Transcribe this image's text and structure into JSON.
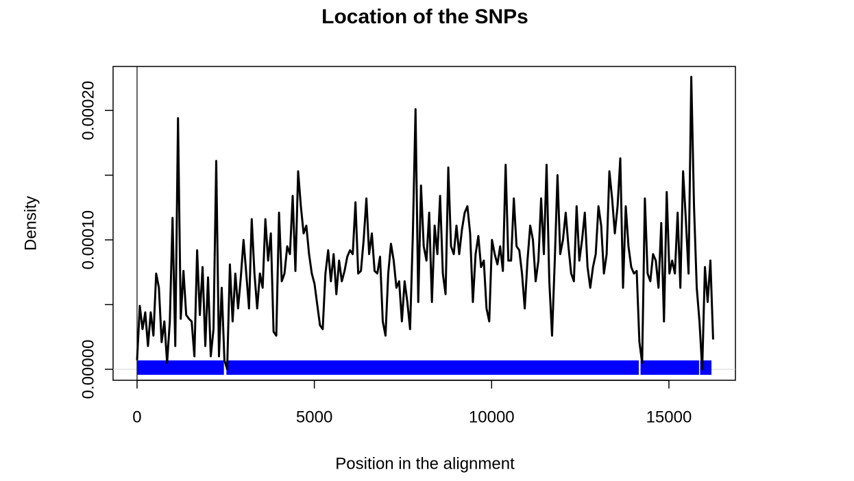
{
  "chart_data": {
    "type": "line",
    "title": "Location of the SNPs",
    "x_label": "Position in the alignment",
    "y_label": "Density",
    "xlim": [
      -676,
      16876
    ],
    "ylim": [
      -8.5e-06,
      0.000234
    ],
    "xticks": [
      0,
      5000,
      10000,
      15000
    ],
    "yticks": [
      {
        "value": 0,
        "label": "0.00000"
      },
      {
        "value": 0.0001,
        "label": "0.00010"
      },
      {
        "value": 0.0002,
        "label": "0.00020"
      }
    ],
    "yminor_ticks": [
      5e-05,
      0.00015
    ],
    "vline": 0,
    "hline": 0,
    "hline_color": "#d3d3d3",
    "rug_color": "#0000ff",
    "rug_segments": [
      [
        0,
        2450
      ],
      [
        2520,
        14150
      ],
      [
        14200,
        15850
      ],
      [
        15880,
        16200
      ]
    ],
    "x": [
      0,
      77,
      154,
      231,
      308,
      385,
      462,
      539,
      616,
      693,
      770,
      847,
      924,
      1001,
      1078,
      1155,
      1232,
      1309,
      1386,
      1463,
      1540,
      1617,
      1694,
      1771,
      1848,
      1925,
      2002,
      2079,
      2156,
      2233,
      2310,
      2387,
      2464,
      2541,
      2618,
      2695,
      2772,
      2849,
      2926,
      3003,
      3080,
      3157,
      3234,
      3311,
      3388,
      3465,
      3542,
      3619,
      3696,
      3773,
      3850,
      3927,
      4004,
      4081,
      4158,
      4235,
      4312,
      4389,
      4466,
      4543,
      4620,
      4697,
      4774,
      4851,
      4928,
      5005,
      5082,
      5159,
      5236,
      5313,
      5390,
      5467,
      5544,
      5621,
      5698,
      5775,
      5852,
      5929,
      6006,
      6083,
      6160,
      6237,
      6314,
      6391,
      6468,
      6545,
      6622,
      6699,
      6776,
      6853,
      6930,
      7007,
      7084,
      7161,
      7238,
      7315,
      7392,
      7469,
      7546,
      7623,
      7700,
      7777,
      7854,
      7931,
      8008,
      8085,
      8162,
      8239,
      8316,
      8393,
      8470,
      8547,
      8624,
      8701,
      8778,
      8855,
      8932,
      9009,
      9086,
      9163,
      9240,
      9317,
      9394,
      9471,
      9548,
      9625,
      9702,
      9779,
      9856,
      9933,
      10010,
      10087,
      10164,
      10241,
      10318,
      10395,
      10472,
      10549,
      10626,
      10703,
      10780,
      10857,
      10934,
      11011,
      11088,
      11165,
      11242,
      11319,
      11396,
      11473,
      11550,
      11627,
      11704,
      11781,
      11858,
      11935,
      12012,
      12089,
      12166,
      12243,
      12320,
      12397,
      12474,
      12551,
      12628,
      12705,
      12782,
      12859,
      12936,
      13013,
      13090,
      13167,
      13244,
      13321,
      13398,
      13475,
      13552,
      13629,
      13706,
      13783,
      13860,
      13937,
      14014,
      14091,
      14168,
      14245,
      14322,
      14399,
      14476,
      14553,
      14630,
      14707,
      14784,
      14861,
      14938,
      15015,
      15092,
      15169,
      15246,
      15323,
      15400,
      15477,
      15554,
      15631,
      15708,
      15785,
      15862,
      15939,
      16016,
      16093,
      16170,
      16247
    ],
    "series": [
      {
        "color": "#000000",
        "values": [
          7e-06,
          4.9e-05,
          3.1e-05,
          4.4e-05,
          1.8e-05,
          4.4e-05,
          2.6e-05,
          7.4e-05,
          6.3e-05,
          2.1e-05,
          3.7e-05,
          5e-06,
          3.7e-05,
          0.000117,
          1.8e-05,
          0.000194,
          3.9e-05,
          7.6e-05,
          4.2e-05,
          3.9e-05,
          3.7e-05,
          1e-05,
          9.2e-05,
          4.2e-05,
          7.9e-05,
          1.8e-05,
          7.1e-05,
          1e-05,
          3.1e-05,
          0.000161,
          1e-05,
          6.3e-05,
          7e-06,
          0,
          8.1e-05,
          3.7e-05,
          7.4e-05,
          4.7e-05,
          7.1e-05,
          0.0001,
          7.4e-05,
          4.7e-05,
          0.000116,
          7.4e-05,
          4.7e-05,
          7.4e-05,
          6.3e-05,
          0.000116,
          8.4e-05,
          0.000105,
          2.9e-05,
          2.6e-05,
          0.000121,
          6.8e-05,
          7.4e-05,
          9.5e-05,
          8.9e-05,
          0.000134,
          7.6e-05,
          0.000153,
          0.000126,
          0.000105,
          0.000111,
          8.9e-05,
          7.4e-05,
          6.6e-05,
          5e-05,
          3.4e-05,
          3.1e-05,
          7.4e-05,
          9.2e-05,
          6.8e-05,
          8.9e-05,
          5.8e-05,
          8.4e-05,
          6.8e-05,
          7.6e-05,
          8.7e-05,
          9.2e-05,
          8.9e-05,
          0.000129,
          7.4e-05,
          7.6e-05,
          0.0001,
          0.000132,
          8.9e-05,
          0.000105,
          7.6e-05,
          7.4e-05,
          8.7e-05,
          3.7e-05,
          2.6e-05,
          7.4e-05,
          9.7e-05,
          8.4e-05,
          6.3e-05,
          6.8e-05,
          3.7e-05,
          6.8e-05,
          5.2e-05,
          3.1e-05,
          0.000103,
          0.000201,
          5.2e-05,
          0.000142,
          9.5e-05,
          8.4e-05,
          0.000121,
          5.2e-05,
          0.000111,
          8.9e-05,
          0.000134,
          7.4e-05,
          5.8e-05,
          0.000156,
          9.5e-05,
          8.9e-05,
          0.000111,
          8.9e-05,
          0.000108,
          0.000121,
          0.000126,
          0.000105,
          5.2e-05,
          8.9e-05,
          0.000103,
          7.9e-05,
          8.4e-05,
          4.7e-05,
          3.7e-05,
          0.0001,
          8.9e-05,
          8.1e-05,
          9.5e-05,
          7.6e-05,
          0.000158,
          8.4e-05,
          8.4e-05,
          0.000132,
          9.5e-05,
          9.2e-05,
          7.4e-05,
          4.7e-05,
          8.4e-05,
          0.000111,
          0.0001,
          6.8e-05,
          8.4e-05,
          0.000132,
          8.9e-05,
          0.000158,
          6.8e-05,
          2.6e-05,
          8.4e-05,
          0.00015,
          8.9e-05,
          0.0001,
          0.000121,
          9.5e-05,
          7.4e-05,
          6.8e-05,
          0.000126,
          8.4e-05,
          0.0001,
          0.000121,
          7.9e-05,
          6.3e-05,
          7.9e-05,
          8.9e-05,
          0.000126,
          0.000111,
          7.4e-05,
          8.9e-05,
          0.000153,
          0.000132,
          0.000105,
          0.000126,
          0.000163,
          6.3e-05,
          0.000126,
          9.5e-05,
          7.9e-05,
          7.4e-05,
          7.6e-05,
          2.1e-05,
          5e-06,
          0.000132,
          7.4e-05,
          6.8e-05,
          8.9e-05,
          8.4e-05,
          6.3e-05,
          0.000113,
          3.7e-05,
          0.000137,
          7.4e-05,
          8.4e-05,
          7.4e-05,
          0.000121,
          6.3e-05,
          0.000153,
          0.000116,
          7.4e-05,
          0.000226,
          0.000126,
          6.3e-05,
          3.7e-05,
          0,
          7.9e-05,
          5.2e-05,
          8.4e-05,
          2.3e-05
        ]
      }
    ]
  }
}
